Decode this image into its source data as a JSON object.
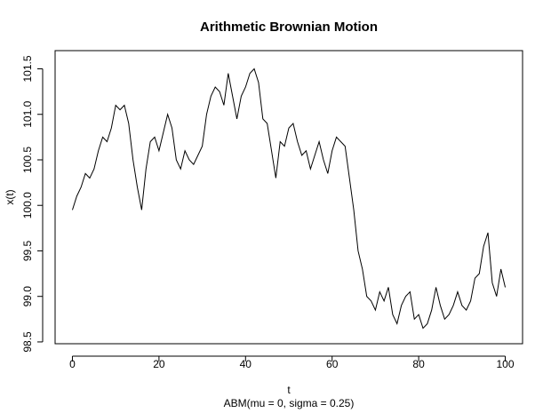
{
  "chart_data": {
    "type": "line",
    "title": "Arithmetic Brownian Motion",
    "x_label": "t",
    "y_label": "x(t)",
    "subtitle": "ABM(mu = 0, sigma = 0.25)",
    "x": [
      0,
      1,
      2,
      3,
      4,
      5,
      6,
      7,
      8,
      9,
      10,
      11,
      12,
      13,
      14,
      15,
      16,
      17,
      18,
      19,
      20,
      21,
      22,
      23,
      24,
      25,
      26,
      27,
      28,
      29,
      30,
      31,
      32,
      33,
      34,
      35,
      36,
      37,
      38,
      39,
      40,
      41,
      42,
      43,
      44,
      45,
      46,
      47,
      48,
      49,
      50,
      51,
      52,
      53,
      54,
      55,
      56,
      57,
      58,
      59,
      60,
      61,
      62,
      63,
      64,
      65,
      66,
      67,
      68,
      69,
      70,
      71,
      72,
      73,
      74,
      75,
      76,
      77,
      78,
      79,
      80,
      81,
      82,
      83,
      84,
      85,
      86,
      87,
      88,
      89,
      90,
      91,
      92,
      93,
      94,
      95,
      96,
      97,
      98,
      99,
      100
    ],
    "series": [
      {
        "name": "x(t)",
        "color": "#000000",
        "values": [
          99.95,
          100.1,
          100.2,
          100.35,
          100.3,
          100.4,
          100.6,
          100.75,
          100.7,
          100.85,
          101.1,
          101.05,
          101.1,
          100.9,
          100.5,
          100.2,
          99.95,
          100.4,
          100.7,
          100.75,
          100.6,
          100.8,
          101.0,
          100.85,
          100.5,
          100.4,
          100.6,
          100.5,
          100.45,
          100.55,
          100.65,
          101.0,
          101.2,
          101.3,
          101.25,
          101.1,
          101.45,
          101.2,
          100.95,
          101.2,
          101.3,
          101.45,
          101.5,
          101.35,
          100.95,
          100.9,
          100.6,
          100.3,
          100.7,
          100.65,
          100.85,
          100.9,
          100.7,
          100.55,
          100.6,
          100.4,
          100.55,
          100.7,
          100.5,
          100.35,
          100.6,
          100.75,
          100.7,
          100.65,
          100.3,
          99.95,
          99.5,
          99.3,
          99.0,
          98.95,
          98.85,
          99.05,
          98.95,
          99.1,
          98.8,
          98.7,
          98.9,
          99.0,
          99.05,
          98.75,
          98.8,
          98.65,
          98.7,
          98.85,
          99.1,
          98.9,
          98.75,
          98.8,
          98.9,
          99.05,
          98.9,
          98.85,
          98.95,
          99.2,
          99.25,
          99.55,
          99.7,
          99.15,
          99.0,
          99.3,
          99.1
        ]
      }
    ],
    "xlim": [
      -4,
      104
    ],
    "ylim": [
      98.48,
      101.7
    ],
    "xticks": [
      0,
      20,
      40,
      60,
      80,
      100
    ],
    "yticks": [
      98.5,
      {
        "value": 99,
        "label": "99.0"
      },
      99.5,
      {
        "value": 100,
        "label": "100.0"
      },
      100.5,
      {
        "value": 101,
        "label": "101.0"
      },
      101.5
    ],
    "grid": false
  }
}
